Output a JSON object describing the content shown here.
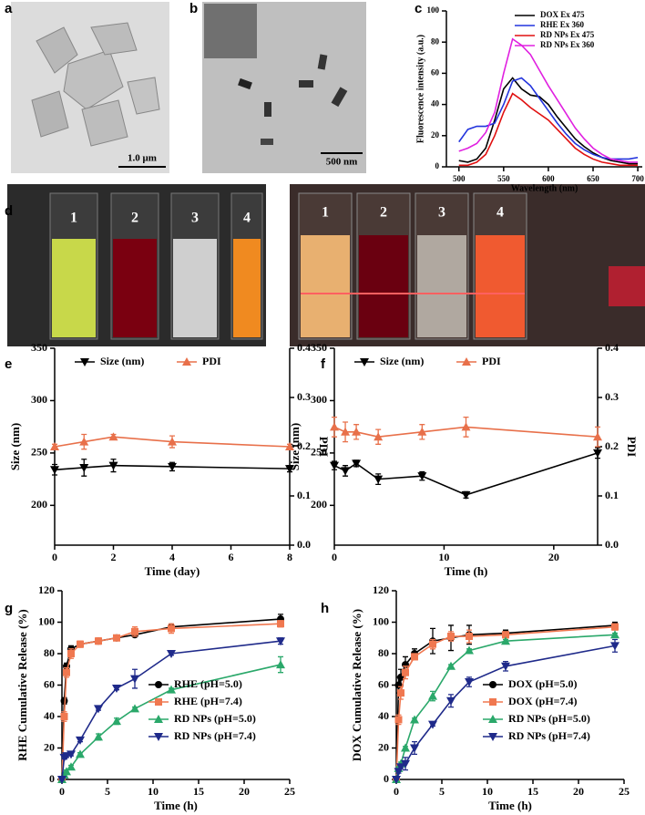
{
  "panels": [
    "a",
    "b",
    "c",
    "d",
    "e",
    "f",
    "g",
    "h"
  ],
  "image_texts": {
    "a_scale": "1.0 μm",
    "b_scale": "500 nm",
    "d_left": [
      "1",
      "2",
      "3",
      "4"
    ],
    "d_right": [
      "1",
      "2",
      "3",
      "4"
    ]
  },
  "chart_data": [
    {
      "type": "line",
      "xlabel": "Wavelength (nm)",
      "ylabel": "Fluorescence intensity (a.u.)",
      "x": [
        500,
        510,
        520,
        530,
        540,
        550,
        560,
        570,
        580,
        590,
        600,
        610,
        620,
        630,
        640,
        650,
        660,
        670,
        680,
        690,
        700
      ],
      "xlim": [
        486,
        705
      ],
      "xticks": [
        500,
        550,
        600,
        650,
        700
      ],
      "ylim": [
        0,
        100
      ],
      "yticks": [
        0,
        20,
        40,
        60,
        80,
        100
      ],
      "legend": "upper right",
      "series": [
        {
          "name": "DOX Ex 475",
          "color": "#000000",
          "values": [
            4,
            3,
            5,
            12,
            30,
            50,
            57,
            50,
            46,
            45,
            40,
            32,
            25,
            18,
            13,
            9,
            6,
            4,
            3,
            2,
            2
          ]
        },
        {
          "name": "RHE Ex 360",
          "color": "#2233dd",
          "values": [
            16,
            24,
            26,
            26,
            28,
            40,
            55,
            57,
            52,
            44,
            36,
            28,
            21,
            15,
            11,
            8,
            6,
            5,
            5,
            5,
            6
          ]
        },
        {
          "name": "RD NPs Ex 475",
          "color": "#e01010",
          "values": [
            1,
            1,
            3,
            8,
            20,
            35,
            47,
            43,
            38,
            34,
            30,
            24,
            18,
            12,
            8,
            5,
            3,
            2,
            1,
            1,
            1
          ]
        },
        {
          "name": "RD NPs Ex 360",
          "color": "#e020e0",
          "values": [
            10,
            12,
            15,
            22,
            35,
            60,
            82,
            78,
            72,
            62,
            52,
            43,
            34,
            25,
            18,
            12,
            8,
            5,
            4,
            3,
            3
          ]
        }
      ]
    },
    {
      "type": "line",
      "xlabel": "Time (day)",
      "ylabel": "Size (nm)",
      "y2label": "PDI",
      "x": [
        0,
        1,
        2,
        4,
        8
      ],
      "xlim": [
        0,
        8
      ],
      "xticks": [
        0,
        2,
        4,
        6,
        8
      ],
      "ylim": [
        162,
        350
      ],
      "yticks": [
        200,
        250,
        300,
        350
      ],
      "y2lim": [
        0,
        0.4
      ],
      "y2ticks": [
        {
          "value": 0,
          "label": "0.0"
        },
        0.1,
        0.2,
        0.3,
        0.4
      ],
      "legend": "upper center",
      "series": [
        {
          "name": "Size (nm)",
          "color": "#000000",
          "marker": "triangle-down",
          "values": [
            234,
            236,
            238,
            237,
            235
          ],
          "errors": [
            5,
            8,
            6,
            4,
            3
          ]
        },
        {
          "name": "PDI",
          "color": "#e8704a",
          "marker": "triangle-up",
          "axis": "y2",
          "values": [
            0.2,
            0.21,
            0.22,
            0.21,
            0.2
          ],
          "errors": [
            0.005,
            0.015,
            0.005,
            0.012,
            0.005
          ]
        }
      ]
    },
    {
      "type": "line",
      "xlabel": "Time (h)",
      "ylabel": "Size (nm)",
      "y2label": "PDI",
      "x": [
        0,
        1,
        2,
        4,
        8,
        12,
        24
      ],
      "xlim": [
        0,
        24
      ],
      "xticks": [
        0,
        10,
        20
      ],
      "ylim": [
        162,
        350
      ],
      "yticks": [
        200,
        250,
        300,
        350
      ],
      "y2lim": [
        0,
        0.4
      ],
      "y2ticks": [
        {
          "value": 0,
          "label": "0.0"
        },
        0.1,
        0.2,
        0.3,
        0.4
      ],
      "legend": "upper center",
      "series": [
        {
          "name": "Size (nm)",
          "color": "#000000",
          "marker": "triangle-down",
          "values": [
            238,
            233,
            240,
            225,
            228,
            210,
            250
          ],
          "errors": [
            4,
            5,
            3,
            5,
            4,
            3,
            5
          ]
        },
        {
          "name": "PDI",
          "color": "#e8704a",
          "marker": "triangle-up",
          "axis": "y2",
          "values": [
            0.24,
            0.23,
            0.23,
            0.22,
            0.23,
            0.24,
            0.22
          ],
          "errors": [
            0.02,
            0.02,
            0.015,
            0.015,
            0.015,
            0.02,
            0.02
          ]
        }
      ]
    },
    {
      "type": "line",
      "xlabel": "Time (h)",
      "ylabel": "RHE Cumulative Release (%)",
      "x": [
        0,
        0.25,
        0.5,
        1,
        2,
        4,
        6,
        8,
        12,
        24
      ],
      "xlim": [
        0,
        25
      ],
      "xticks": [
        0,
        5,
        10,
        15,
        20,
        25
      ],
      "ylim": [
        0,
        120
      ],
      "yticks": [
        0,
        20,
        40,
        60,
        80,
        100,
        120
      ],
      "legend": "lower right",
      "series": [
        {
          "name": "RHE (pH=5.0)",
          "color": "#000000",
          "marker": "circle",
          "values": [
            0,
            50,
            72,
            83,
            86,
            88,
            90,
            92,
            97,
            102
          ],
          "errors": [
            0,
            2,
            2,
            2,
            1,
            1,
            1,
            1,
            1,
            3
          ]
        },
        {
          "name": "RHE (pH=7.4)",
          "color": "#f07850",
          "marker": "square",
          "values": [
            0,
            40,
            68,
            80,
            86,
            88,
            90,
            94,
            96,
            99
          ],
          "errors": [
            0,
            3,
            3,
            3,
            2,
            2,
            1,
            3,
            3,
            2
          ]
        },
        {
          "name": "RD NPs (pH=5.0)",
          "color": "#2aa86a",
          "marker": "triangle-up",
          "values": [
            0,
            3,
            5,
            8,
            16,
            27,
            37,
            45,
            57,
            73
          ],
          "errors": [
            0,
            1,
            1,
            1,
            1,
            2,
            2,
            1,
            1,
            5
          ]
        },
        {
          "name": "RD NPs (pH=7.4)",
          "color": "#1f2a8a",
          "marker": "triangle-down",
          "values": [
            0,
            14,
            15,
            16,
            25,
            45,
            58,
            64,
            80,
            88
          ],
          "errors": [
            0,
            1,
            1,
            1,
            1,
            1,
            1,
            6,
            1,
            2
          ]
        }
      ]
    },
    {
      "type": "line",
      "xlabel": "Time (h)",
      "ylabel": "DOX Cumulative Release (%)",
      "x": [
        0,
        0.25,
        0.5,
        1,
        2,
        4,
        6,
        8,
        12,
        24
      ],
      "xlim": [
        0,
        25
      ],
      "xticks": [
        0,
        5,
        10,
        15,
        20,
        25
      ],
      "ylim": [
        0,
        120
      ],
      "yticks": [
        0,
        20,
        40,
        60,
        80,
        100,
        120
      ],
      "legend": "lower right",
      "series": [
        {
          "name": "DOX (pH=5.0)",
          "color": "#000000",
          "marker": "circle",
          "values": [
            0,
            60,
            65,
            73,
            80,
            88,
            90,
            92,
            93,
            98
          ],
          "errors": [
            0,
            5,
            5,
            5,
            3,
            8,
            8,
            6,
            2,
            2
          ]
        },
        {
          "name": "DOX (pH=7.4)",
          "color": "#f07850",
          "marker": "square",
          "values": [
            0,
            38,
            55,
            68,
            78,
            86,
            91,
            91,
            92,
            97
          ],
          "errors": [
            0,
            3,
            4,
            4,
            2,
            3,
            3,
            4,
            2,
            2
          ]
        },
        {
          "name": "RD NPs (pH=5.0)",
          "color": "#2aa86a",
          "marker": "triangle-up",
          "values": [
            0,
            7,
            10,
            20,
            38,
            53,
            72,
            82,
            88,
            92
          ],
          "errors": [
            0,
            1,
            1,
            1,
            1,
            3,
            1,
            1,
            1,
            1
          ]
        },
        {
          "name": "RD NPs (pH=7.4)",
          "color": "#1f2a8a",
          "marker": "triangle-down",
          "values": [
            0,
            5,
            8,
            10,
            20,
            35,
            50,
            62,
            72,
            85
          ],
          "errors": [
            0,
            1,
            1,
            4,
            4,
            1,
            4,
            3,
            3,
            4
          ]
        }
      ]
    }
  ]
}
